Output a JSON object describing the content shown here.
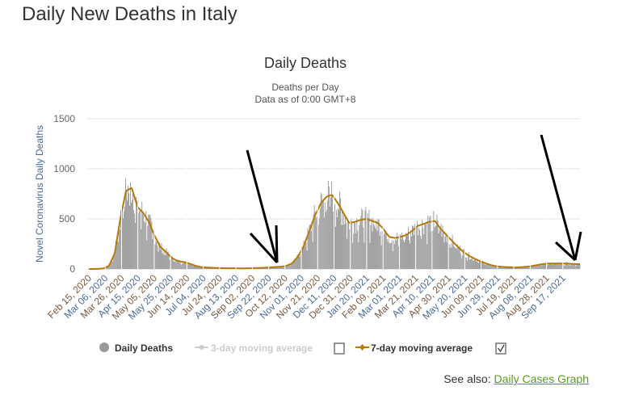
{
  "page_title": "Daily New Deaths in Italy",
  "see_also": {
    "label": "See also:",
    "link": "Daily Cases Graph"
  },
  "colors": {
    "bars": "#999999",
    "ma7": "#b5780b",
    "ma3": "#cccccc",
    "grid": "#e6e6e6",
    "link": "#5a9c18"
  },
  "chart_data": {
    "type": "bar",
    "title": "Daily Deaths",
    "subtitle": [
      "Deaths per Day",
      "Data as of 0:00 GMT+8"
    ],
    "ylabel": "Novel Coronavirus Daily Deaths",
    "ylim": [
      0,
      1500
    ],
    "yticks": [
      0,
      500,
      1000,
      1500
    ],
    "x_start": "2020-02-15",
    "x_ticks": [
      "Feb 15, 2020",
      "Mar 06, 2020",
      "Mar 26, 2020",
      "Apr 15, 2020",
      "May 05, 2020",
      "May 25, 2020",
      "Jun 14, 2020",
      "Jul 04, 2020",
      "Jul 24, 2020",
      "Aug 13, 2020",
      "Sep 02, 2020",
      "Sep 22, 2020",
      "Oct 12, 2020",
      "Nov 01, 2020",
      "Nov 21, 2020",
      "Dec 11, 2020",
      "Dec 31, 2020",
      "Jan 20, 2021",
      "Feb 09, 2021",
      "Mar 01, 2021",
      "Mar 21, 2021",
      "Apr 10, 2021",
      "Apr 30, 2021",
      "May 20, 2021",
      "Jun 09, 2021",
      "Jun 29, 2021",
      "Jul 19, 2021",
      "Aug 08, 2021",
      "Aug 28, 2021",
      "Sep 17, 2021"
    ],
    "tick_interval_days": 20,
    "weekly_7day_average": [
      0,
      1,
      5,
      30,
      150,
      500,
      780,
      810,
      620,
      560,
      470,
      330,
      220,
      170,
      110,
      80,
      70,
      55,
      35,
      20,
      15,
      12,
      10,
      8,
      7,
      8,
      6,
      7,
      8,
      10,
      12,
      15,
      20,
      22,
      30,
      55,
      120,
      220,
      370,
      530,
      650,
      720,
      740,
      660,
      560,
      460,
      470,
      490,
      500,
      480,
      460,
      400,
      320,
      310,
      320,
      340,
      380,
      430,
      450,
      470,
      480,
      400,
      340,
      280,
      220,
      170,
      130,
      100,
      75,
      55,
      35,
      25,
      20,
      18,
      15,
      18,
      22,
      30,
      40,
      50,
      55,
      55,
      55,
      55,
      50,
      48
    ],
    "legend": [
      {
        "label": "Daily Deaths",
        "enabled": true
      },
      {
        "label": "3-day moving average",
        "enabled": false,
        "checked": false
      },
      {
        "label": "7-day moving average",
        "enabled": true,
        "checked": true
      }
    ],
    "grid": true
  }
}
